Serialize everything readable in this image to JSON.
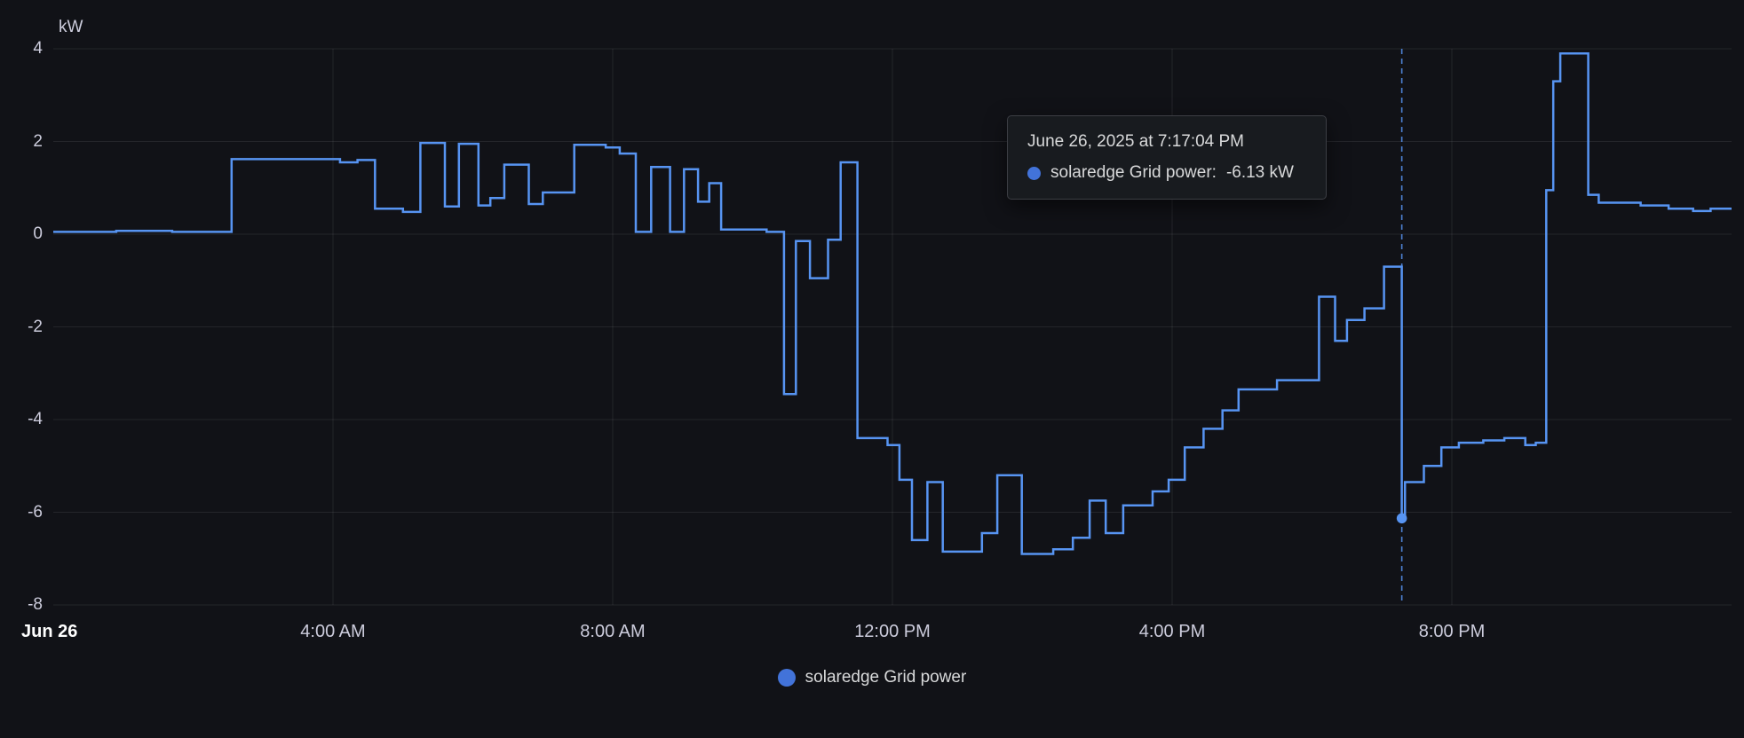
{
  "page": {
    "background": "#111217"
  },
  "colors": {
    "series_line": "#5794F2",
    "marker_dot": "#4273d9",
    "grid": "rgba(204,204,220,0.10)",
    "tick_text": "#ccccdc",
    "first_tick_text": "#ffffff",
    "crosshair": "#5794F2",
    "tooltip_bg": "#181b1f",
    "tooltip_border": "rgba(204,204,220,0.20)"
  },
  "chart_data": {
    "type": "line",
    "step_mode": "after",
    "title": "",
    "ylabel": "kW",
    "ylim": [
      -8,
      4
    ],
    "y_ticks": [
      4,
      2,
      0,
      -2,
      -4,
      -6,
      -8
    ],
    "x_axis": {
      "start_label": "Jun 26",
      "range_hours": [
        0,
        24
      ],
      "ticks": [
        {
          "t": 4,
          "label": "4:00 AM"
        },
        {
          "t": 8,
          "label": "8:00 AM"
        },
        {
          "t": 12,
          "label": "12:00 PM"
        },
        {
          "t": 16,
          "label": "4:00 PM"
        },
        {
          "t": 20,
          "label": "8:00 PM"
        }
      ]
    },
    "series": [
      {
        "name": "solaredge Grid power",
        "color": "#5794F2",
        "unit": "kW",
        "points": [
          [
            0.0,
            0.05
          ],
          [
            0.9,
            0.07
          ],
          [
            1.7,
            0.05
          ],
          [
            2.55,
            1.62
          ],
          [
            4.1,
            1.55
          ],
          [
            4.35,
            1.6
          ],
          [
            4.6,
            0.55
          ],
          [
            5.0,
            0.48
          ],
          [
            5.25,
            1.97
          ],
          [
            5.6,
            0.6
          ],
          [
            5.8,
            1.95
          ],
          [
            6.08,
            0.62
          ],
          [
            6.25,
            0.78
          ],
          [
            6.45,
            1.5
          ],
          [
            6.8,
            0.65
          ],
          [
            7.0,
            0.9
          ],
          [
            7.45,
            1.93
          ],
          [
            7.9,
            1.87
          ],
          [
            8.1,
            1.74
          ],
          [
            8.33,
            0.05
          ],
          [
            8.55,
            1.45
          ],
          [
            8.82,
            0.05
          ],
          [
            9.02,
            1.4
          ],
          [
            9.22,
            0.7
          ],
          [
            9.38,
            1.1
          ],
          [
            9.55,
            0.1
          ],
          [
            10.2,
            0.05
          ],
          [
            10.45,
            -3.45
          ],
          [
            10.62,
            -0.15
          ],
          [
            10.82,
            -0.95
          ],
          [
            11.08,
            -0.12
          ],
          [
            11.26,
            1.55
          ],
          [
            11.5,
            -4.4
          ],
          [
            11.93,
            -4.55
          ],
          [
            12.1,
            -5.3
          ],
          [
            12.28,
            -6.6
          ],
          [
            12.5,
            -5.35
          ],
          [
            12.72,
            -6.85
          ],
          [
            13.28,
            -6.45
          ],
          [
            13.5,
            -5.2
          ],
          [
            13.85,
            -6.9
          ],
          [
            14.3,
            -6.8
          ],
          [
            14.58,
            -6.55
          ],
          [
            14.82,
            -5.75
          ],
          [
            15.05,
            -6.45
          ],
          [
            15.3,
            -5.85
          ],
          [
            15.72,
            -5.55
          ],
          [
            15.95,
            -5.3
          ],
          [
            16.18,
            -4.6
          ],
          [
            16.45,
            -4.2
          ],
          [
            16.72,
            -3.8
          ],
          [
            16.95,
            -3.35
          ],
          [
            17.5,
            -3.15
          ],
          [
            18.1,
            -1.35
          ],
          [
            18.33,
            -2.3
          ],
          [
            18.5,
            -1.85
          ],
          [
            18.75,
            -1.6
          ],
          [
            19.03,
            -0.7
          ],
          [
            19.2844,
            -6.13
          ],
          [
            19.33,
            -5.35
          ],
          [
            19.6,
            -5.0
          ],
          [
            19.85,
            -4.6
          ],
          [
            20.1,
            -4.5
          ],
          [
            20.45,
            -4.45
          ],
          [
            20.75,
            -4.4
          ],
          [
            21.05,
            -4.55
          ],
          [
            21.2,
            -4.5
          ],
          [
            21.35,
            0.95
          ],
          [
            21.45,
            3.3
          ],
          [
            21.55,
            3.9
          ],
          [
            21.95,
            0.85
          ],
          [
            22.1,
            0.68
          ],
          [
            22.7,
            0.62
          ],
          [
            23.1,
            0.55
          ],
          [
            23.45,
            0.5
          ],
          [
            23.7,
            0.55
          ]
        ]
      }
    ],
    "highlight_point": {
      "t": 19.2844,
      "value": -6.13
    }
  },
  "tooltip": {
    "title": "June 26, 2025 at 7:17:04 PM",
    "series_label": "solaredge Grid power:",
    "value": "-6.13 kW"
  },
  "legend": {
    "label": "solaredge Grid power"
  }
}
